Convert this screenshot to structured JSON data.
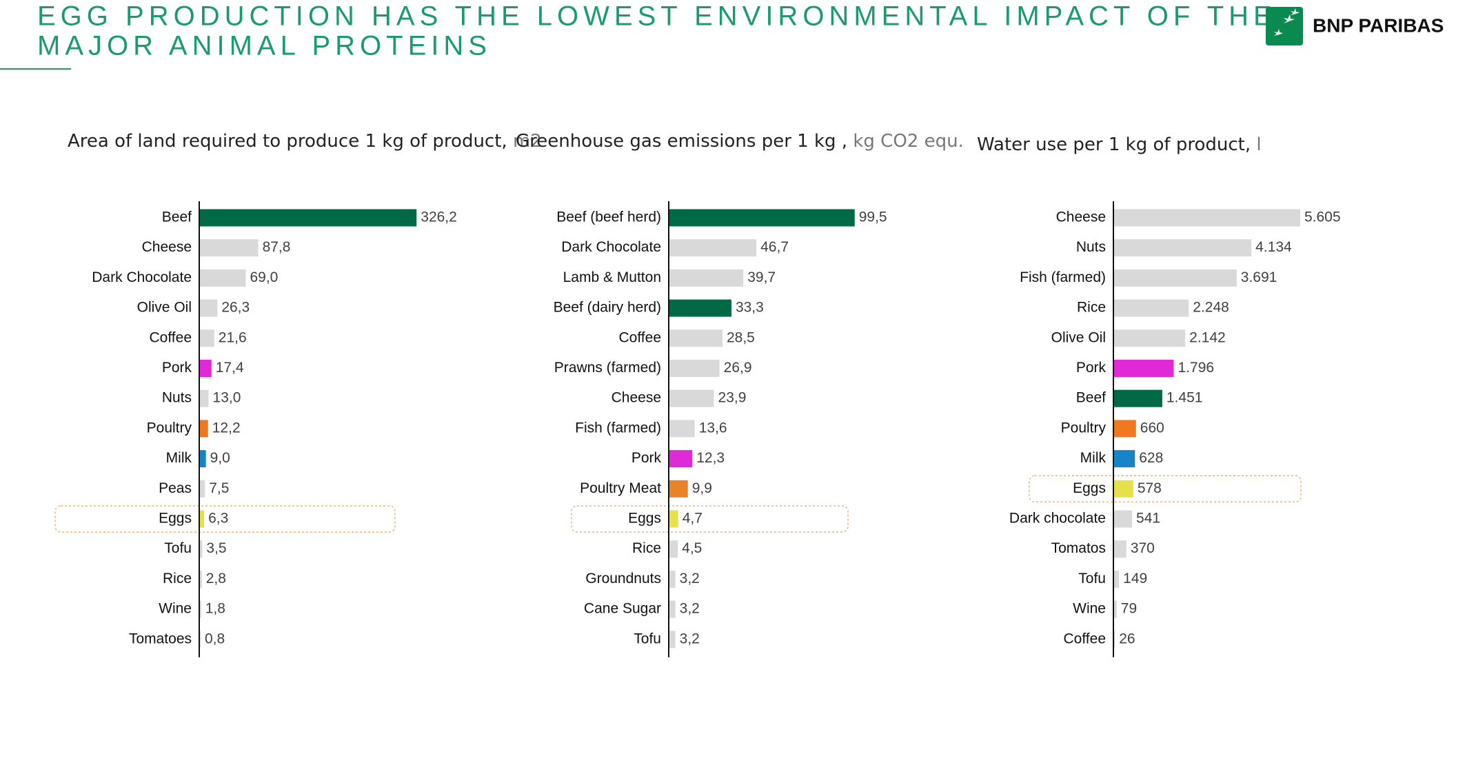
{
  "header": {
    "title_lines": [
      "EGG PRODUCTION HAS THE LOWEST ENVIRONMENTAL IMPACT OF THE",
      "MAJOR ANIMAL PROTEINS"
    ],
    "logo_text": "BNP PARIBAS"
  },
  "chart_data": [
    {
      "type": "hbar",
      "title": "Area of land required to produce 1 kg of product,",
      "unit": "m2",
      "categories": [
        "Beef",
        "Cheese",
        "Dark Chocolate",
        "Olive Oil",
        "Coffee",
        "Pork",
        "Nuts",
        "Poultry",
        "Milk",
        "Peas",
        "Eggs",
        "Tofu",
        "Rice",
        "Wine",
        "Tomatoes"
      ],
      "values": [
        326.2,
        87.8,
        69.0,
        26.3,
        21.6,
        17.4,
        13.0,
        12.2,
        9.0,
        7.5,
        6.3,
        3.5,
        2.8,
        1.8,
        0.8
      ],
      "value_labels": [
        "326,2",
        "87,8",
        "69,0",
        "26,3",
        "21,6",
        "17,4",
        "13,0",
        "12,2",
        "9,0",
        "7,5",
        "6,3",
        "3,5",
        "2,8",
        "1,8",
        "0,8"
      ],
      "colors": [
        "#006a46",
        "#d9d9d9",
        "#d9d9d9",
        "#d9d9d9",
        "#d9d9d9",
        "#e02ad8",
        "#d9d9d9",
        "#f07820",
        "#1784c7",
        "#d9d9d9",
        "#e6e04a",
        "#d9d9d9",
        "#d9d9d9",
        "#d9d9d9",
        "#d9d9d9"
      ],
      "xlim": [
        0,
        328
      ],
      "highlight_category": "Eggs"
    },
    {
      "type": "hbar",
      "title": "Greenhouse gas emissions per 1 kg ,",
      "unit": "kg CO2 equ.",
      "categories": [
        "Beef (beef herd)",
        "Dark Chocolate",
        "Lamb & Mutton",
        "Beef (dairy herd)",
        "Coffee",
        "Prawns (farmed)",
        "Cheese",
        "Fish (farmed)",
        "Pork",
        "Poultry Meat",
        "Eggs",
        "Rice",
        "Groundnuts",
        "Cane Sugar",
        "Tofu"
      ],
      "values": [
        99.5,
        46.7,
        39.7,
        33.3,
        28.5,
        26.9,
        23.9,
        13.6,
        12.3,
        9.9,
        4.7,
        4.5,
        3.2,
        3.2,
        3.2
      ],
      "value_labels": [
        "99,5",
        "46,7",
        "39,7",
        "33,3",
        "28,5",
        "26,9",
        "23,9",
        "13,6",
        "12,3",
        "9,9",
        "4,7",
        "4,5",
        "3,2",
        "3,2",
        "3,2"
      ],
      "colors": [
        "#006a46",
        "#d9d9d9",
        "#d9d9d9",
        "#006a46",
        "#d9d9d9",
        "#d9d9d9",
        "#d9d9d9",
        "#d9d9d9",
        "#e02ad8",
        "#e8832a",
        "#e6e04a",
        "#d9d9d9",
        "#d9d9d9",
        "#d9d9d9",
        "#d9d9d9"
      ],
      "xlim": [
        0,
        117
      ],
      "highlight_category": "Eggs"
    },
    {
      "type": "hbar",
      "title": "Water use per 1 kg of product,",
      "unit": "l",
      "categories": [
        "Cheese",
        "Nuts",
        "Fish (farmed)",
        "Rice",
        "Olive Oil",
        "Pork",
        "Beef",
        "Poultry",
        "Milk",
        "Eggs",
        "Dark chocolate",
        "Tomatos",
        "Tofu",
        "Wine",
        "Coffee"
      ],
      "values": [
        5605,
        4134,
        3691,
        2248,
        2142,
        1796,
        1451,
        660,
        628,
        578,
        541,
        370,
        149,
        79,
        26
      ],
      "value_labels": [
        "5.605",
        "4.134",
        "3.691",
        "2.248",
        "2.142",
        "1.796",
        "1.451",
        "660",
        "628",
        "578",
        "541",
        "370",
        "149",
        "79",
        "26"
      ],
      "colors": [
        "#d9d9d9",
        "#d9d9d9",
        "#d9d9d9",
        "#d9d9d9",
        "#d9d9d9",
        "#e02ad8",
        "#006a46",
        "#f07820",
        "#1784c7",
        "#e6e04a",
        "#d9d9d9",
        "#d9d9d9",
        "#d9d9d9",
        "#d9d9d9",
        "#d9d9d9"
      ],
      "xlim": [
        0,
        6560
      ],
      "highlight_category": "Eggs"
    }
  ]
}
